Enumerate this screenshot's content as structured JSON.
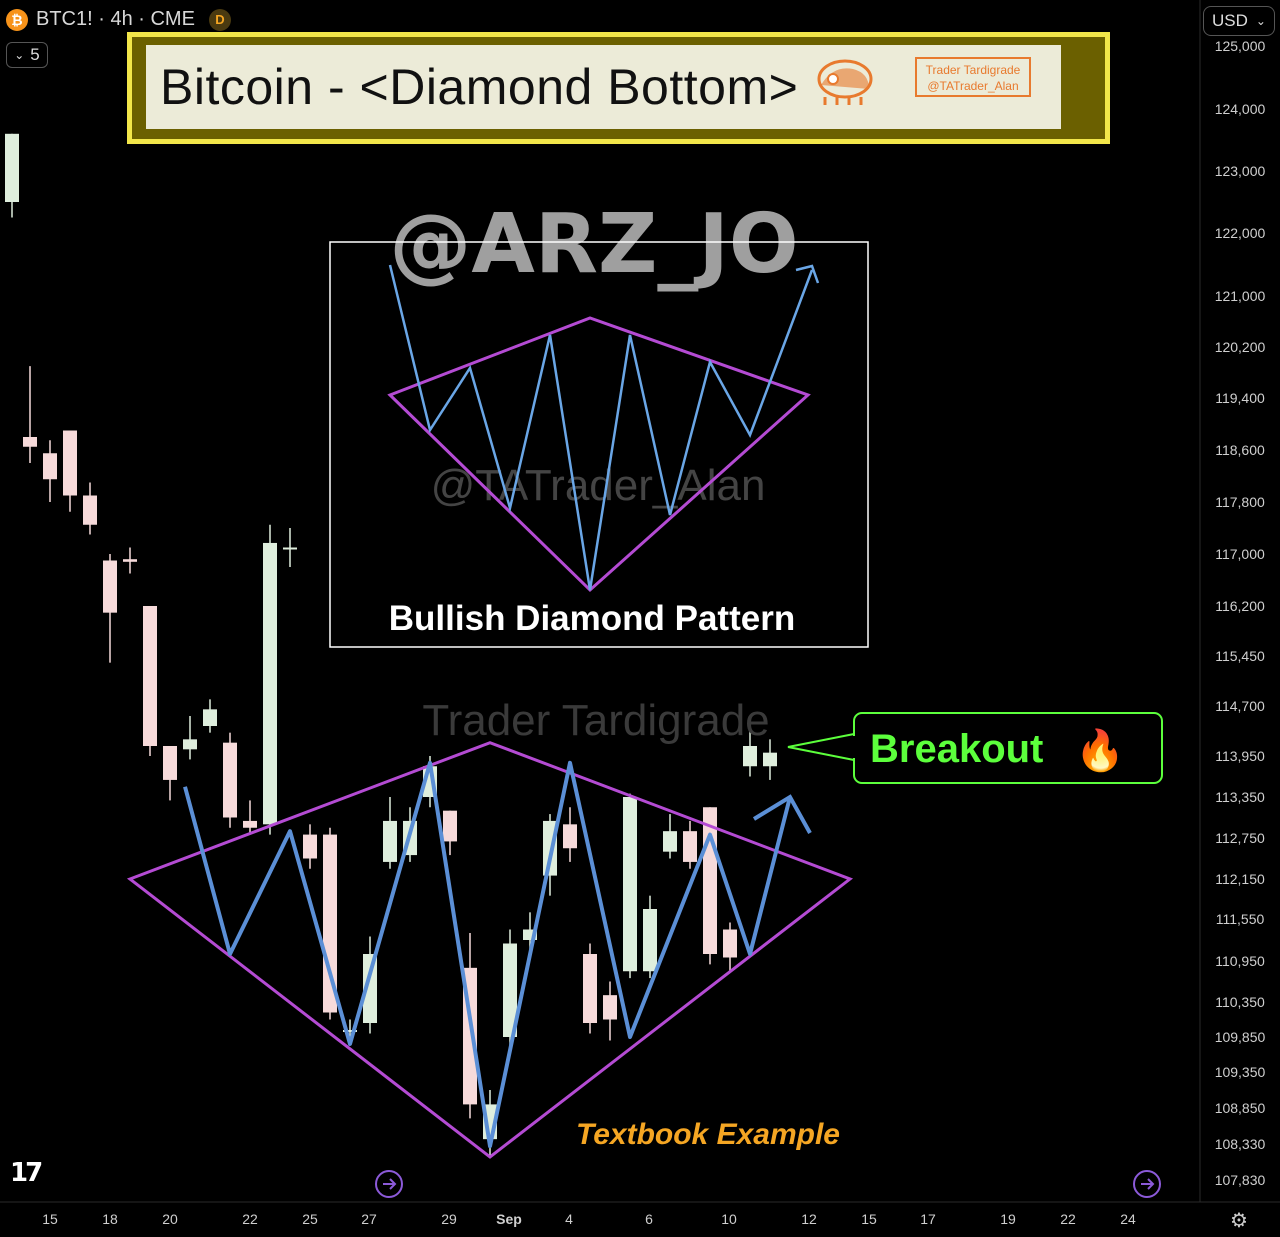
{
  "header": {
    "symbol": "BTC1! · 4h · CME",
    "coin_icon": "bitcoin-icon",
    "coin_glyph": "₿",
    "badge": "D"
  },
  "interval": {
    "label": "5",
    "icon": "chevron-down-icon"
  },
  "currency": {
    "label": "USD",
    "icon": "chevron-down-icon"
  },
  "title_box": {
    "title": "Bitcoin - <Diamond Bottom>",
    "brand_line1": "Trader Tardigrade",
    "brand_line2": "@TATrader_Alan",
    "logo_icon": "tardigrade-logo-icon"
  },
  "watermarks": {
    "handle": "@ARZ_JO",
    "inner": "@TATrader_Alan",
    "lower": "Trader Tardigrade"
  },
  "inset": {
    "label": "Bullish Diamond Pattern"
  },
  "breakout_label": "Breakout",
  "breakout_emoji": "🔥",
  "textbook_label": "Textbook Example",
  "colors": {
    "up": "#dfeedd",
    "down": "#f6dada",
    "diamond": "#b44bd3",
    "zigzag": "#5b8fd6",
    "breakout": "#5cff3c",
    "textbook": "#f5a623",
    "title_border": "#f2e64a"
  },
  "chart_data": {
    "type": "candlestick",
    "title": "Bitcoin - <Diamond Bottom>",
    "symbol": "BTC1!",
    "timeframe": "4h",
    "exchange": "CME",
    "x_axis": {
      "ticks": [
        "15",
        "18",
        "20",
        "22",
        "25",
        "27",
        "29",
        "Sep",
        "4",
        "6",
        "10",
        "12",
        "15",
        "17",
        "19",
        "22",
        "24"
      ]
    },
    "y_axis": {
      "ticks": [
        125000,
        124000,
        123000,
        122000,
        121000,
        120200,
        119400,
        118600,
        117800,
        117000,
        116200,
        115450,
        114700,
        113950,
        113350,
        112750,
        112150,
        111550,
        110950,
        110350,
        109850,
        109350,
        108850,
        108330,
        107830
      ],
      "tick_labels": [
        "125,000",
        "124,000",
        "123,000",
        "122,000",
        "121,000",
        "120,200",
        "119,400",
        "118,600",
        "117,800",
        "117,000",
        "116,200",
        "115,450",
        "114,700",
        "113,950",
        "113,350",
        "112,750",
        "112,150",
        "111,550",
        "110,950",
        "110,350",
        "109,850",
        "109,350",
        "108,850",
        "108,330",
        "107,830"
      ],
      "range": [
        107600,
        125100
      ]
    },
    "candles": [
      {
        "x": 12,
        "o": 122500,
        "c": 123600,
        "h": 123600,
        "l": 122250
      },
      {
        "x": 30,
        "o": 118800,
        "c": 118650,
        "h": 119900,
        "l": 118400
      },
      {
        "x": 50,
        "o": 118550,
        "c": 118150,
        "h": 118750,
        "l": 117800
      },
      {
        "x": 70,
        "o": 118900,
        "c": 117900,
        "h": 118900,
        "l": 117650
      },
      {
        "x": 90,
        "o": 117900,
        "c": 117450,
        "h": 118100,
        "l": 117300
      },
      {
        "x": 110,
        "o": 116900,
        "c": 116100,
        "h": 117000,
        "l": 115350
      },
      {
        "x": 130,
        "o": 116920,
        "c": 116880,
        "h": 117100,
        "l": 116700
      },
      {
        "x": 150,
        "o": 116200,
        "c": 114100,
        "h": 116200,
        "l": 113950
      },
      {
        "x": 170,
        "o": 114100,
        "c": 113600,
        "h": 114100,
        "l": 113300
      },
      {
        "x": 190,
        "o": 114050,
        "c": 114200,
        "h": 114550,
        "l": 113900
      },
      {
        "x": 210,
        "o": 114400,
        "c": 114650,
        "h": 114800,
        "l": 114300
      },
      {
        "x": 230,
        "o": 114150,
        "c": 113050,
        "h": 114300,
        "l": 112900
      },
      {
        "x": 250,
        "o": 113000,
        "c": 112900,
        "h": 113300,
        "l": 112800
      },
      {
        "x": 270,
        "o": 112950,
        "c": 117170,
        "h": 117450,
        "l": 112800
      },
      {
        "x": 290,
        "o": 117100,
        "c": 117100,
        "h": 117400,
        "l": 116800
      },
      {
        "x": 310,
        "o": 112800,
        "c": 112450,
        "h": 112950,
        "l": 112300
      },
      {
        "x": 330,
        "o": 112800,
        "c": 110200,
        "h": 112900,
        "l": 110100
      },
      {
        "x": 350,
        "o": 109950,
        "c": 109950,
        "h": 110100,
        "l": 109800
      },
      {
        "x": 370,
        "o": 110050,
        "c": 111050,
        "h": 111300,
        "l": 109900
      },
      {
        "x": 390,
        "o": 112400,
        "c": 113000,
        "h": 113350,
        "l": 112300
      },
      {
        "x": 410,
        "o": 112500,
        "c": 113000,
        "h": 113200,
        "l": 112400
      },
      {
        "x": 430,
        "o": 113350,
        "c": 113800,
        "h": 113950,
        "l": 113200
      },
      {
        "x": 450,
        "o": 113150,
        "c": 112700,
        "h": 113150,
        "l": 112500
      },
      {
        "x": 470,
        "o": 110850,
        "c": 108900,
        "h": 111350,
        "l": 108700
      },
      {
        "x": 490,
        "o": 108400,
        "c": 108900,
        "h": 109100,
        "l": 108150
      },
      {
        "x": 510,
        "o": 109850,
        "c": 111200,
        "h": 111400,
        "l": 109700
      },
      {
        "x": 530,
        "o": 111250,
        "c": 111400,
        "h": 111650,
        "l": 111100
      },
      {
        "x": 550,
        "o": 112200,
        "c": 113000,
        "h": 113100,
        "l": 111900
      },
      {
        "x": 570,
        "o": 112950,
        "c": 112600,
        "h": 113200,
        "l": 112400
      },
      {
        "x": 590,
        "o": 111050,
        "c": 110050,
        "h": 111200,
        "l": 109900
      },
      {
        "x": 610,
        "o": 110450,
        "c": 110100,
        "h": 110650,
        "l": 109800
      },
      {
        "x": 630,
        "o": 110800,
        "c": 113350,
        "h": 113400,
        "l": 110700
      },
      {
        "x": 650,
        "o": 110800,
        "c": 111700,
        "h": 111900,
        "l": 110700
      },
      {
        "x": 670,
        "o": 112550,
        "c": 112850,
        "h": 113100,
        "l": 112450
      },
      {
        "x": 690,
        "o": 112850,
        "c": 112400,
        "h": 113000,
        "l": 112300
      },
      {
        "x": 710,
        "o": 113200,
        "c": 111050,
        "h": 113200,
        "l": 110900
      },
      {
        "x": 730,
        "o": 111400,
        "c": 111000,
        "h": 111500,
        "l": 110800
      },
      {
        "x": 750,
        "o": 113800,
        "c": 114100,
        "h": 114550,
        "l": 113650
      },
      {
        "x": 770,
        "o": 113800,
        "c": 114000,
        "h": 114200,
        "l": 113600
      }
    ],
    "annotations": {
      "diamond": [
        [
          130,
          112150
        ],
        [
          490,
          114150
        ],
        [
          850,
          112150
        ],
        [
          490,
          108150
        ]
      ],
      "zigzag": [
        [
          185,
          113500
        ],
        [
          230,
          111050
        ],
        [
          290,
          112850
        ],
        [
          350,
          109750
        ],
        [
          430,
          113850
        ],
        [
          490,
          108300
        ],
        [
          570,
          113850
        ],
        [
          630,
          109850
        ],
        [
          710,
          112800
        ],
        [
          750,
          111050
        ],
        [
          790,
          113350
        ]
      ],
      "arrow_head_tip": [
        790,
        113350
      ]
    }
  }
}
